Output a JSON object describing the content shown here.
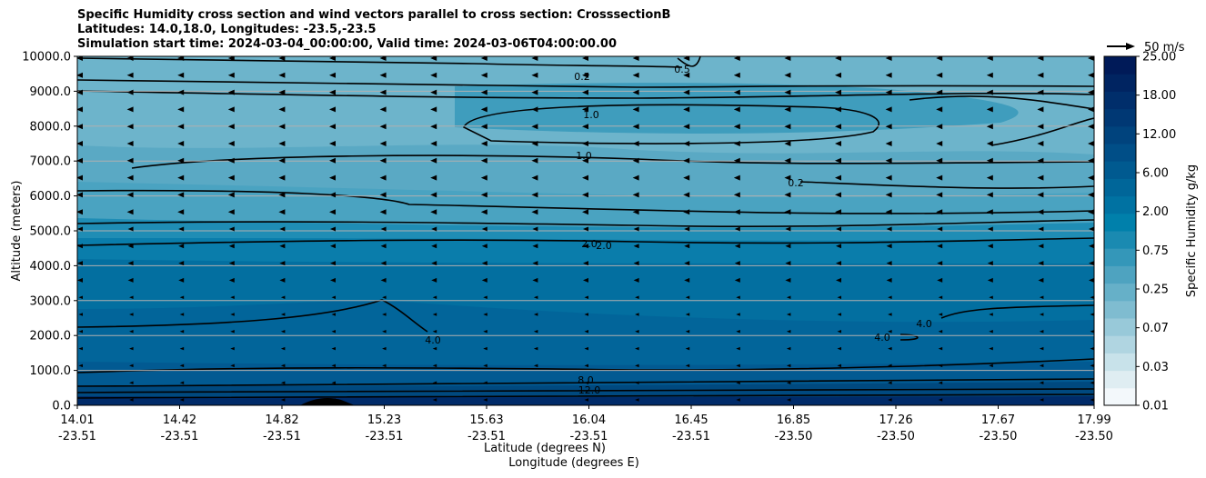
{
  "chart_data": {
    "type": "contourf",
    "title_lines": [
      "Specific Humidity cross section and wind vectors parallel to cross section: CrosssectionB",
      "Latitudes: 14.0,18.0, Longitudes: -23.5,-23.5",
      "Simulation start time: 2024-03-04_00:00:00, Valid time: 2024-03-06T04:00:00.00"
    ],
    "ylabel": "Altitude (meters)",
    "xlabel_lat": "Latitude (degrees N)",
    "xlabel_lon": "Longitude (degrees E)",
    "ylim": [
      0,
      10000
    ],
    "y_ticks": [
      "0.0",
      "1000.0",
      "2000.0",
      "3000.0",
      "4000.0",
      "5000.0",
      "6000.0",
      "7000.0",
      "8000.0",
      "9000.0",
      "10000.0"
    ],
    "x_ticks": [
      {
        "lat": "14.01",
        "lon": "-23.51"
      },
      {
        "lat": "14.42",
        "lon": "-23.51"
      },
      {
        "lat": "14.82",
        "lon": "-23.51"
      },
      {
        "lat": "15.23",
        "lon": "-23.51"
      },
      {
        "lat": "15.63",
        "lon": "-23.51"
      },
      {
        "lat": "16.04",
        "lon": "-23.51"
      },
      {
        "lat": "16.45",
        "lon": "-23.51"
      },
      {
        "lat": "16.85",
        "lon": "-23.50"
      },
      {
        "lat": "17.26",
        "lon": "-23.50"
      },
      {
        "lat": "17.67",
        "lon": "-23.50"
      },
      {
        "lat": "17.99",
        "lon": "-23.50"
      }
    ],
    "grid": true,
    "colorbar": {
      "label": "Specific Humidity g/kg",
      "levels": [
        "0.01",
        "0.03",
        "0.07",
        "0.25",
        "0.75",
        "2.00",
        "6.00",
        "12.00",
        "18.00",
        "25.00"
      ],
      "colors": [
        "#f3f8fb",
        "#dfedf2",
        "#c8e2ea",
        "#b0d5e1",
        "#98c9d9",
        "#7fbcd0",
        "#66b0c8",
        "#4ea3c0",
        "#3497b9",
        "#1a8ab1",
        "#0080ab",
        "#0072a2",
        "#006699",
        "#005a90",
        "#004e87",
        "#00437d",
        "#003874",
        "#002e6b",
        "#002461",
        "#001a58"
      ]
    },
    "contour_labels": [
      "0.2",
      "0.5",
      "1.0",
      "2.0",
      "4.0",
      "8.0",
      "12.0"
    ],
    "wind_key": {
      "value": 50,
      "label": "50 m/s"
    }
  }
}
